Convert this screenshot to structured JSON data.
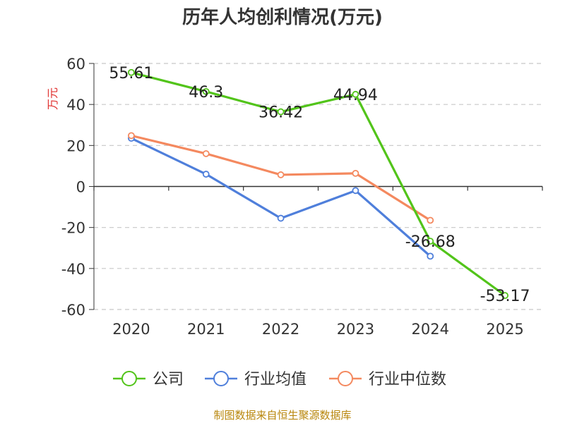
{
  "title": "历年人均创利情况(万元)",
  "source": "制图数据来自恒生聚源数据库",
  "chart_data": {
    "type": "line",
    "title": "历年人均创利情况(万元)",
    "ylabel": "万元",
    "xlabel": "",
    "categories": [
      "2020",
      "2021",
      "2022",
      "2023",
      "2024",
      "2025"
    ],
    "ylim": [
      -60,
      60
    ],
    "yticks": [
      60,
      40,
      20,
      0,
      -20,
      -40,
      -60
    ],
    "grid": true,
    "legend_position": "bottom",
    "series": [
      {
        "name": "公司",
        "color": "#52c41a",
        "values": [
          55.61,
          46.3,
          36.42,
          44.94,
          -26.68,
          -53.17
        ],
        "labels": [
          "55.61",
          "46.3",
          "36.42",
          "44.94",
          "-26.68",
          "-53.17"
        ]
      },
      {
        "name": "行业均值",
        "color": "#4f7fdb",
        "values": [
          23.5,
          6,
          -15.5,
          -2,
          -34,
          null
        ]
      },
      {
        "name": "行业中位数",
        "color": "#f4895f",
        "values": [
          24.8,
          16,
          5.7,
          6.4,
          -16.5,
          null
        ]
      }
    ]
  }
}
